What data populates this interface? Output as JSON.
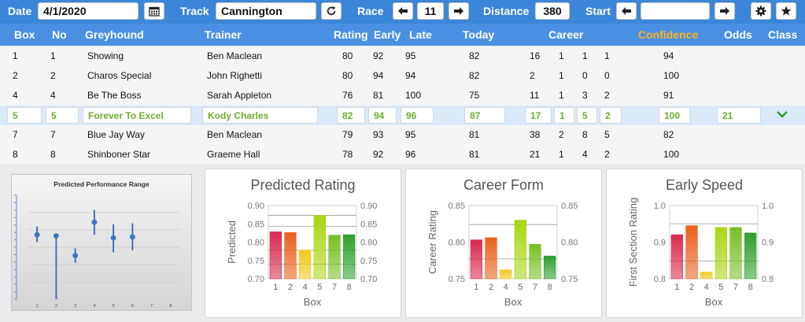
{
  "toolbar": {
    "date_label": "Date",
    "date_value": "4/1/2020",
    "track_label": "Track",
    "track_value": "Cannington",
    "race_label": "Race",
    "race_value": "11",
    "distance_label": "Distance",
    "distance_value": "380",
    "start_label": "Start",
    "start_value": ""
  },
  "table": {
    "headers": {
      "box": "Box",
      "no": "No",
      "greyhound": "Greyhound",
      "trainer": "Trainer",
      "rating": "Rating",
      "early": "Early",
      "late": "Late",
      "today": "Today",
      "career": "Career",
      "confidence": "Confidence",
      "odds": "Odds",
      "class": "Class"
    },
    "rows": [
      {
        "box": "1",
        "no": "1",
        "greyhound": "Showing",
        "trainer": "Ben Maclean",
        "rating": "80",
        "early": "92",
        "late": "95",
        "today": "82",
        "c1": "16",
        "c2": "1",
        "c3": "1",
        "c4": "1",
        "confidence": "94",
        "odds": ""
      },
      {
        "box": "2",
        "no": "2",
        "greyhound": "Charos Special",
        "trainer": "John Righetti",
        "rating": "80",
        "early": "94",
        "late": "94",
        "today": "82",
        "c1": "2",
        "c2": "1",
        "c3": "0",
        "c4": "0",
        "confidence": "100",
        "odds": ""
      },
      {
        "box": "4",
        "no": "4",
        "greyhound": "Be The Boss",
        "trainer": "Sarah Appleton",
        "rating": "76",
        "early": "81",
        "late": "100",
        "today": "75",
        "c1": "11",
        "c2": "1",
        "c3": "3",
        "c4": "2",
        "confidence": "91",
        "odds": ""
      },
      {
        "box": "5",
        "no": "5",
        "greyhound": "Forever To Excel",
        "trainer": "Kody Charles",
        "rating": "82",
        "early": "94",
        "late": "96",
        "today": "87",
        "c1": "17",
        "c2": "1",
        "c3": "5",
        "c4": "2",
        "confidence": "100",
        "odds": "21"
      },
      {
        "box": "7",
        "no": "7",
        "greyhound": "Blue Jay Way",
        "trainer": "Ben Maclean",
        "rating": "79",
        "early": "93",
        "late": "95",
        "today": "81",
        "c1": "38",
        "c2": "2",
        "c3": "8",
        "c4": "5",
        "confidence": "82",
        "odds": ""
      },
      {
        "box": "8",
        "no": "8",
        "greyhound": "Shinboner Star",
        "trainer": "Graeme Hall",
        "rating": "78",
        "early": "92",
        "late": "96",
        "today": "81",
        "c1": "21",
        "c2": "1",
        "c3": "4",
        "c4": "2",
        "confidence": "100",
        "odds": ""
      }
    ],
    "selected_index": 3
  },
  "colors": {
    "toolbar_bg": "#3b86d8",
    "header_bg": "#4a90e2",
    "confidence_header": "#ffb01f",
    "selected_row_bg": "#dce9f9",
    "selected_text": "#6dae2d",
    "bar_colors": [
      "#d8294f",
      "#e8601a",
      "#f2c81a",
      "#a9d612",
      "#77bf24",
      "#2e9f2e"
    ]
  },
  "icons": {
    "calendar": "calendar-icon",
    "refresh": "refresh-icon",
    "race_prev": "arrow-left-icon",
    "race_next": "arrow-right-icon",
    "start_prev": "arrow-left-icon",
    "start_next": "arrow-right-icon",
    "settings": "gear-icon",
    "favorite": "star-icon",
    "expand": "chevron-down-icon"
  },
  "chart_data": [
    {
      "type": "scatter",
      "title": "Predicted Performance Range",
      "x": [
        1,
        2,
        3,
        4,
        5,
        6,
        7,
        8
      ],
      "points": [
        {
          "x": 1,
          "mid": 0.62,
          "low": 0.55,
          "high": 0.7
        },
        {
          "x": 2,
          "mid": 0.61,
          "low": 0.0,
          "high": 0.61
        },
        {
          "x": 3,
          "mid": 0.42,
          "low": 0.35,
          "high": 0.49
        },
        {
          "x": 4,
          "mid": 0.74,
          "low": 0.62,
          "high": 0.86
        },
        {
          "x": 5,
          "mid": 0.59,
          "low": 0.45,
          "high": 0.72
        },
        {
          "x": 6,
          "mid": 0.6,
          "low": 0.47,
          "high": 0.73
        }
      ],
      "ylim": [
        0,
        1
      ]
    },
    {
      "type": "bar",
      "title": "Predicted Rating",
      "xlabel": "Box",
      "ylabel": "Predicted",
      "categories": [
        "1",
        "2",
        "4",
        "5",
        "7",
        "8"
      ],
      "values": [
        0.828,
        0.826,
        0.778,
        0.873,
        0.819,
        0.82
      ],
      "ylim": [
        0.7,
        0.9
      ],
      "yticks": [
        "0.90",
        "0.85",
        "0.80",
        "0.75",
        "0.70"
      ],
      "reference_lines": [
        0.74,
        0.778,
        0.843,
        0.873
      ]
    },
    {
      "type": "bar",
      "title": "Career Form",
      "xlabel": "Box",
      "ylabel": "Career Rating",
      "categories": [
        "1",
        "2",
        "4",
        "5",
        "7",
        "8"
      ],
      "values": [
        0.803,
        0.806,
        0.762,
        0.83,
        0.797,
        0.781
      ],
      "ylim": [
        0.75,
        0.85
      ],
      "yticks": [
        "0.85",
        "0.80",
        "0.75"
      ],
      "reference_lines": [
        0.777,
        0.824
      ]
    },
    {
      "type": "bar",
      "title": "Early Speed",
      "xlabel": "Box",
      "ylabel": "First Section Rating",
      "categories": [
        "1",
        "2",
        "4",
        "5",
        "7",
        "8"
      ],
      "values": [
        0.92,
        0.945,
        0.818,
        0.94,
        0.94,
        0.925
      ],
      "ylim": [
        0.8,
        1.0
      ],
      "yticks": [
        "1.0",
        "0.9",
        "0.8"
      ],
      "reference_lines": [
        0.848,
        0.95
      ]
    }
  ]
}
